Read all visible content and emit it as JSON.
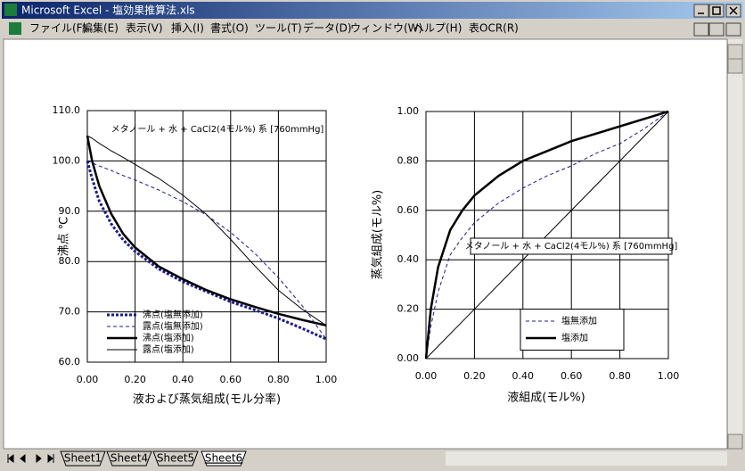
{
  "window": {
    "title": "Microsoft Excel - 塩効果推算法.xls"
  },
  "menu": [
    "ファイル(F)",
    "編集(E)",
    "表示(V)",
    "挿入(I)",
    "書式(O)",
    "ツール(T)",
    "データ(D)",
    "ウィンドウ(W)",
    "ヘルプ(H)",
    "表OCR(R)"
  ],
  "sheet_tabs": [
    "Sheet1",
    "Sheet4",
    "Sheet5",
    "Sheet6"
  ],
  "active_tab": 3,
  "chart_data": [
    {
      "type": "line",
      "annotation": "メタノール + 水 + CaCl2(4モル%) 系 [760mmHg]",
      "x_label": "液および蒸気組成(モル分率)",
      "y_label": "沸点 ℃",
      "x": [
        0,
        0.02,
        0.05,
        0.1,
        0.15,
        0.2,
        0.3,
        0.4,
        0.5,
        0.6,
        0.7,
        0.8,
        0.9,
        1.0
      ],
      "series": [
        {
          "name": "沸点(塩無添加)",
          "color": "#1a1a8c",
          "line_style": "dotted",
          "line_width": 3,
          "values": [
            100,
            96.5,
            92,
            87.5,
            84.3,
            82,
            78.5,
            76,
            74,
            72,
            70.4,
            68.7,
            66.7,
            64.6
          ]
        },
        {
          "name": "露点(塩無添加)",
          "color": "#1a1a8c",
          "line_style": "dashed",
          "line_width": 1,
          "values": [
            100,
            99.6,
            99,
            98.1,
            97.1,
            96.2,
            94.2,
            91.9,
            89.2,
            85.8,
            81.7,
            76.8,
            71.2,
            64.6
          ]
        },
        {
          "name": "沸点(塩添加)",
          "color": "#000000",
          "line_style": "solid",
          "line_width": 2.5,
          "values": [
            105,
            100,
            95,
            89.5,
            85.5,
            82.8,
            79,
            76.5,
            74.3,
            72.5,
            71,
            69.6,
            68.4,
            67.3
          ]
        },
        {
          "name": "露点(塩添加)",
          "color": "#000000",
          "line_style": "solid",
          "line_width": 1,
          "values": [
            105,
            104.5,
            103.5,
            102,
            100.7,
            99.3,
            96.5,
            93.2,
            89.3,
            84.4,
            79.2,
            74.3,
            70.5,
            67.3
          ]
        }
      ],
      "xlim": [
        0,
        1
      ],
      "xticks": [
        {
          "value": 0,
          "label": "0.00"
        },
        {
          "value": 0.2,
          "label": "0.20"
        },
        {
          "value": 0.4,
          "label": "0.40"
        },
        {
          "value": 0.6,
          "label": "0.60"
        },
        {
          "value": 0.8,
          "label": "0.80"
        },
        {
          "value": 1,
          "label": "1.00"
        }
      ],
      "ylim": [
        60,
        110
      ],
      "yticks": [
        {
          "value": 60,
          "label": "60.0"
        },
        {
          "value": 70,
          "label": "70.0"
        },
        {
          "value": 80,
          "label": "80.0"
        },
        {
          "value": 90,
          "label": "90.0"
        },
        {
          "value": 100,
          "label": "100.0"
        },
        {
          "value": 110,
          "label": "110.0"
        }
      ],
      "grid": true,
      "legend": "lower left",
      "legend_box": false,
      "annotation_box": false,
      "diagonal": false
    },
    {
      "type": "line",
      "annotation": "メタノール + 水 + CaCl2(4モル%) 系 [760mmHg]",
      "x_label": "液組成(モル%)",
      "y_label": "蒸気組成(モル%)",
      "x": [
        0,
        0.02,
        0.05,
        0.1,
        0.15,
        0.2,
        0.3,
        0.4,
        0.5,
        0.6,
        0.7,
        0.8,
        0.9,
        1.0
      ],
      "series": [
        {
          "name": "塩無添加",
          "color": "#1a1a8c",
          "line_style": "dashed",
          "line_width": 1,
          "values": [
            0,
            0.13,
            0.27,
            0.42,
            0.49,
            0.55,
            0.63,
            0.69,
            0.74,
            0.78,
            0.83,
            0.87,
            0.93,
            1
          ]
        },
        {
          "name": "塩添加",
          "color": "#000000",
          "line_style": "solid",
          "line_width": 2.5,
          "values": [
            0,
            0.2,
            0.37,
            0.52,
            0.6,
            0.66,
            0.74,
            0.8,
            0.84,
            0.88,
            0.91,
            0.94,
            0.97,
            1
          ]
        }
      ],
      "xlim": [
        0,
        1
      ],
      "xticks": [
        {
          "value": 0,
          "label": "0.00"
        },
        {
          "value": 0.2,
          "label": "0.20"
        },
        {
          "value": 0.4,
          "label": "0.40"
        },
        {
          "value": 0.6,
          "label": "0.60"
        },
        {
          "value": 0.8,
          "label": "0.80"
        },
        {
          "value": 1,
          "label": "1.00"
        }
      ],
      "ylim": [
        0,
        1
      ],
      "yticks": [
        {
          "value": 0,
          "label": "0.00"
        },
        {
          "value": 0.2,
          "label": "0.20"
        },
        {
          "value": 0.4,
          "label": "0.40"
        },
        {
          "value": 0.6,
          "label": "0.60"
        },
        {
          "value": 0.8,
          "label": "0.80"
        },
        {
          "value": 1,
          "label": "1.00"
        }
      ],
      "grid": true,
      "legend": "lower right",
      "legend_box": true,
      "annotation_box": true,
      "diagonal": true
    }
  ]
}
